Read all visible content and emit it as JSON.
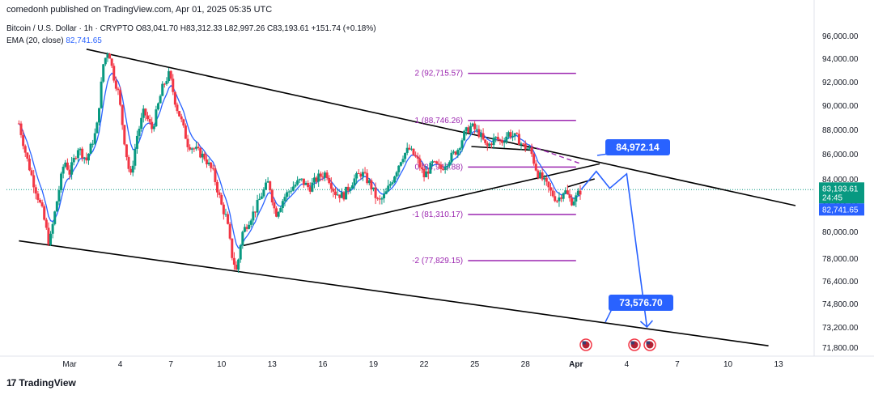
{
  "header": {
    "published": "comedonh published on TradingView.com, Apr 01, 2025 05:35 UTC"
  },
  "legend": {
    "symbol": "Bitcoin / U.S. Dollar · 1h · CRYPTO",
    "ohlc": "O83,041.70 H83,312.33 L82,997.26 C83,193.61 +151.74 (+0.18%)",
    "ema_label": "EMA (20, close)",
    "ema_value": "82,741.65"
  },
  "price_tags": {
    "current": "83,193.61",
    "countdown": "24:45",
    "ema": "82,741.65"
  },
  "callouts": {
    "upper": "84,972.14",
    "lower": "73,576.70"
  },
  "brand": {
    "label": "TradingView",
    "logo": "17"
  },
  "colors": {
    "candle_up": "#089981",
    "candle_down": "#f23645",
    "ema": "#2962ff",
    "fib": "#9c27b0",
    "callout": "#2962ff",
    "trendline": "#000000"
  },
  "chart_data": {
    "type": "candlestick",
    "title": "Bitcoin / U.S. Dollar · 1h · CRYPTO",
    "y_ticks": [
      "96,000.00",
      "94,000.00",
      "92,000.00",
      "90,000.00",
      "88,000.00",
      "86,000.00",
      "84,000.00",
      "82,000.00",
      "80,000.00",
      "78,000.00",
      "76,400.00",
      "74,800.00",
      "73,200.00",
      "71,800.00"
    ],
    "y_tick_values": [
      96000,
      94000,
      92000,
      90000,
      88000,
      86000,
      84000,
      82000,
      80000,
      78000,
      76400,
      74800,
      73200,
      71800
    ],
    "x_ticks": [
      "Mar",
      "4",
      "7",
      "10",
      "13",
      "16",
      "19",
      "22",
      "25",
      "28",
      "Apr",
      "4",
      "7",
      "10",
      "13"
    ],
    "x_tick_day": [
      0,
      3,
      6,
      9,
      12,
      15,
      18,
      21,
      24,
      27,
      30,
      33,
      36,
      39,
      42
    ],
    "ylim": [
      70500,
      97000
    ],
    "price_path": [
      [
        -3,
        88500
      ],
      [
        -2.6,
        86000
      ],
      [
        -2.2,
        84000
      ],
      [
        -1.6,
        81500
      ],
      [
        -1.2,
        79000
      ],
      [
        -0.8,
        82000
      ],
      [
        -0.3,
        85500
      ],
      [
        0,
        84500
      ],
      [
        0.5,
        86500
      ],
      [
        1,
        85500
      ],
      [
        1.6,
        88000
      ],
      [
        2,
        93500
      ],
      [
        2.3,
        94800
      ],
      [
        2.6,
        92500
      ],
      [
        2.9,
        91000
      ],
      [
        3.3,
        86500
      ],
      [
        3.6,
        84000
      ],
      [
        4,
        87500
      ],
      [
        4.4,
        89500
      ],
      [
        4.9,
        88000
      ],
      [
        5.5,
        91500
      ],
      [
        5.9,
        92700
      ],
      [
        6.3,
        90000
      ],
      [
        6.6,
        88800
      ],
      [
        7,
        86800
      ],
      [
        7.5,
        86300
      ],
      [
        8,
        85700
      ],
      [
        8.5,
        84500
      ],
      [
        9,
        82000
      ],
      [
        9.3,
        81000
      ],
      [
        9.6,
        78300
      ],
      [
        9.9,
        77000
      ],
      [
        10.2,
        79800
      ],
      [
        10.6,
        80800
      ],
      [
        11,
        81700
      ],
      [
        11.4,
        82900
      ],
      [
        11.8,
        83800
      ],
      [
        12.2,
        81300
      ],
      [
        12.7,
        82600
      ],
      [
        13.2,
        83400
      ],
      [
        13.7,
        83900
      ],
      [
        14.2,
        83300
      ],
      [
        14.7,
        84100
      ],
      [
        15.2,
        84500
      ],
      [
        15.7,
        83000
      ],
      [
        16.2,
        82700
      ],
      [
        16.8,
        83900
      ],
      [
        17.3,
        84500
      ],
      [
        17.8,
        83600
      ],
      [
        18.3,
        82200
      ],
      [
        18.7,
        82800
      ],
      [
        19.2,
        84200
      ],
      [
        19.7,
        85800
      ],
      [
        20.1,
        86400
      ],
      [
        20.6,
        85500
      ],
      [
        21,
        84200
      ],
      [
        21.5,
        85200
      ],
      [
        22,
        84800
      ],
      [
        22.5,
        85600
      ],
      [
        23,
        86400
      ],
      [
        23.4,
        87700
      ],
      [
        23.8,
        88300
      ],
      [
        24.3,
        87600
      ],
      [
        24.7,
        86500
      ],
      [
        25.2,
        87300
      ],
      [
        25.6,
        87000
      ],
      [
        26,
        87700
      ],
      [
        26.5,
        87300
      ],
      [
        26.9,
        86600
      ],
      [
        27.3,
        86300
      ],
      [
        27.7,
        84500
      ],
      [
        28.1,
        83800
      ],
      [
        28.5,
        83000
      ],
      [
        28.9,
        82400
      ],
      [
        29.3,
        83200
      ],
      [
        29.7,
        82300
      ],
      [
        30,
        82600
      ],
      [
        30.3,
        83200
      ]
    ],
    "ema_last": 82741.65,
    "last_close": 83193.61,
    "fibonacci": [
      {
        "label": "2 (92,715.57)",
        "value": 92715.57
      },
      {
        "label": "1 (88,746.26)",
        "value": 88746.26
      },
      {
        "label": "0 (84,946.88)",
        "value": 84946.88
      },
      {
        "label": "-1 (81,310.17)",
        "value": 81310.17
      },
      {
        "label": "-2 (77,829.15)",
        "value": 77829.15
      }
    ],
    "projection": [
      [
        30.3,
        83193.61
      ],
      [
        31.2,
        84600
      ],
      [
        32.0,
        83300
      ],
      [
        33.0,
        84400
      ],
      [
        34.2,
        73200
      ]
    ],
    "targets": [
      84972.14,
      73576.7
    ]
  }
}
